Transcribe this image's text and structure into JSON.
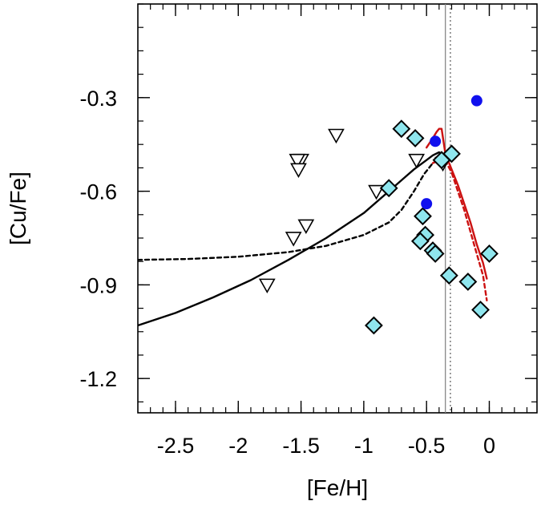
{
  "chart_data": {
    "type": "scatter",
    "title": "",
    "xlabel": "[Fe/H]",
    "ylabel": "[Cu/Fe]",
    "xlim": [
      -2.8,
      0.38
    ],
    "ylim": [
      -1.31,
      0.0
    ],
    "x_ticks": [
      {
        "value": -2.5,
        "label": "-2.5"
      },
      {
        "value": -2.0,
        "label": "-2"
      },
      {
        "value": -1.5,
        "label": "-1.5"
      },
      {
        "value": -1.0,
        "label": "-1"
      },
      {
        "value": -0.5,
        "label": "-0.5"
      },
      {
        "value": 0.0,
        "label": "0"
      }
    ],
    "y_ticks": [
      {
        "value": -0.3,
        "label": "-0.3"
      },
      {
        "value": -0.6,
        "label": "-0.6"
      },
      {
        "value": -0.9,
        "label": "-0.9"
      },
      {
        "value": -1.2,
        "label": "-1.2"
      }
    ],
    "x_minor_step": 0.1,
    "y_minor_step": 0.075,
    "series": [
      {
        "name": "open triangles (upper limits)",
        "marker": "triangle-down-open",
        "color": "#000000",
        "points": [
          [
            -1.22,
            -0.42
          ],
          [
            -1.5,
            -0.5
          ],
          [
            -1.53,
            -0.5
          ],
          [
            -1.52,
            -0.53
          ],
          [
            -0.9,
            -0.6
          ],
          [
            -1.46,
            -0.71
          ],
          [
            -1.56,
            -0.75
          ],
          [
            -1.77,
            -0.9
          ],
          [
            -0.58,
            -0.5
          ],
          [
            -0.37,
            -0.51
          ]
        ]
      },
      {
        "name": "cyan diamonds",
        "marker": "diamond",
        "color": "#8FE6EE",
        "points": [
          [
            -0.7,
            -0.4
          ],
          [
            -0.59,
            -0.43
          ],
          [
            -0.3,
            -0.48
          ],
          [
            -0.38,
            -0.5
          ],
          [
            -0.8,
            -0.59
          ],
          [
            -0.53,
            -0.68
          ],
          [
            -0.51,
            -0.74
          ],
          [
            -0.55,
            -0.76
          ],
          [
            -0.45,
            -0.79
          ],
          [
            -0.43,
            -0.8
          ],
          [
            0.0,
            -0.8
          ],
          [
            -0.32,
            -0.87
          ],
          [
            -0.17,
            -0.89
          ],
          [
            -0.07,
            -0.98
          ],
          [
            -0.92,
            -1.03
          ]
        ]
      },
      {
        "name": "blue circles",
        "marker": "circle",
        "color": "#1010EE",
        "points": [
          [
            -0.1,
            -0.31
          ],
          [
            -0.43,
            -0.44
          ],
          [
            -0.5,
            -0.64
          ]
        ]
      }
    ],
    "curves": [
      {
        "name": "model solid black",
        "style": "solid",
        "color": "#000000",
        "points": [
          [
            -2.8,
            -1.03
          ],
          [
            -2.5,
            -0.99
          ],
          [
            -2.2,
            -0.94
          ],
          [
            -1.9,
            -0.885
          ],
          [
            -1.6,
            -0.82
          ],
          [
            -1.3,
            -0.75
          ],
          [
            -1.0,
            -0.67
          ],
          [
            -0.8,
            -0.6
          ],
          [
            -0.6,
            -0.53
          ],
          [
            -0.5,
            -0.5
          ],
          [
            -0.45,
            -0.485
          ],
          [
            -0.4,
            -0.475
          ],
          [
            -0.38,
            -0.48
          ]
        ]
      },
      {
        "name": "model dashed black",
        "style": "dashed",
        "color": "#000000",
        "points": [
          [
            -2.8,
            -0.82
          ],
          [
            -2.4,
            -0.817
          ],
          [
            -2.0,
            -0.81
          ],
          [
            -1.6,
            -0.795
          ],
          [
            -1.3,
            -0.775
          ],
          [
            -1.0,
            -0.74
          ],
          [
            -0.8,
            -0.7
          ],
          [
            -0.7,
            -0.66
          ],
          [
            -0.6,
            -0.6
          ],
          [
            -0.52,
            -0.545
          ],
          [
            -0.45,
            -0.51
          ],
          [
            -0.4,
            -0.5
          ]
        ]
      },
      {
        "name": "model solid red",
        "style": "solid",
        "color": "#CC1111",
        "points": [
          [
            -0.5,
            -0.46
          ],
          [
            -0.45,
            -0.43
          ],
          [
            -0.42,
            -0.41
          ],
          [
            -0.4,
            -0.4
          ],
          [
            -0.38,
            -0.4
          ],
          [
            -0.35,
            -0.48
          ],
          [
            -0.3,
            -0.53
          ],
          [
            -0.25,
            -0.58
          ],
          [
            -0.2,
            -0.64
          ],
          [
            -0.15,
            -0.7
          ],
          [
            -0.1,
            -0.77
          ],
          [
            -0.05,
            -0.83
          ],
          [
            -0.02,
            -0.88
          ]
        ]
      },
      {
        "name": "model dashed red",
        "style": "dashed",
        "color": "#CC1111",
        "points": [
          [
            -0.45,
            -0.51
          ],
          [
            -0.4,
            -0.5
          ],
          [
            -0.36,
            -0.495
          ],
          [
            -0.3,
            -0.54
          ],
          [
            -0.25,
            -0.6
          ],
          [
            -0.2,
            -0.66
          ],
          [
            -0.15,
            -0.73
          ],
          [
            -0.1,
            -0.8
          ],
          [
            -0.05,
            -0.87
          ],
          [
            -0.02,
            -0.95
          ]
        ]
      }
    ],
    "vlines": [
      {
        "x": -0.35,
        "style": "solid",
        "color": "#888888"
      },
      {
        "x": -0.31,
        "style": "dotted",
        "color": "#666666"
      }
    ]
  }
}
